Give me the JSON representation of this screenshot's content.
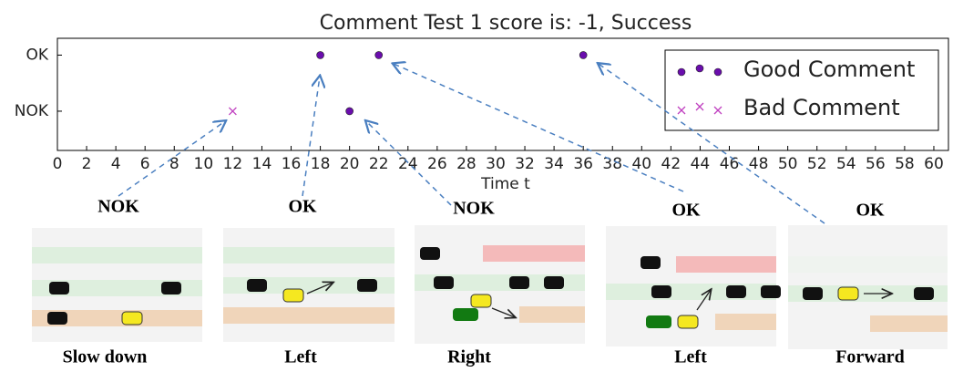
{
  "chart_data": {
    "type": "scatter",
    "title": "Comment Test 1 score is: -1, Success",
    "xlabel": "Time t",
    "xlim": [
      0,
      61
    ],
    "xticks": [
      0,
      2,
      4,
      6,
      8,
      10,
      12,
      14,
      16,
      18,
      20,
      22,
      24,
      26,
      28,
      30,
      32,
      34,
      36,
      38,
      40,
      42,
      44,
      46,
      48,
      50,
      52,
      54,
      56,
      58,
      60
    ],
    "ylim": [
      -0.7,
      1.3
    ],
    "yticks": [
      {
        "value": 0,
        "label": "NOK"
      },
      {
        "value": 1,
        "label": "OK"
      }
    ],
    "grid": false,
    "legend": "upper right",
    "series": [
      {
        "name": "Good Comment",
        "color": "#6a0dad",
        "marker": "o",
        "x": [
          18,
          22,
          36,
          20
        ],
        "values": [
          1,
          1,
          1,
          0
        ]
      },
      {
        "name": "Bad Comment",
        "color": "#c040c0",
        "marker": "x",
        "x": [
          12
        ],
        "values": [
          0
        ]
      }
    ]
  },
  "panels": [
    {
      "label": "NOK",
      "caption": "Slow down"
    },
    {
      "label": "OK",
      "caption": "Left"
    },
    {
      "label": "NOK",
      "caption": "Right"
    },
    {
      "label": "OK",
      "caption": "Left"
    },
    {
      "label": "OK",
      "caption": "Forward"
    }
  ]
}
